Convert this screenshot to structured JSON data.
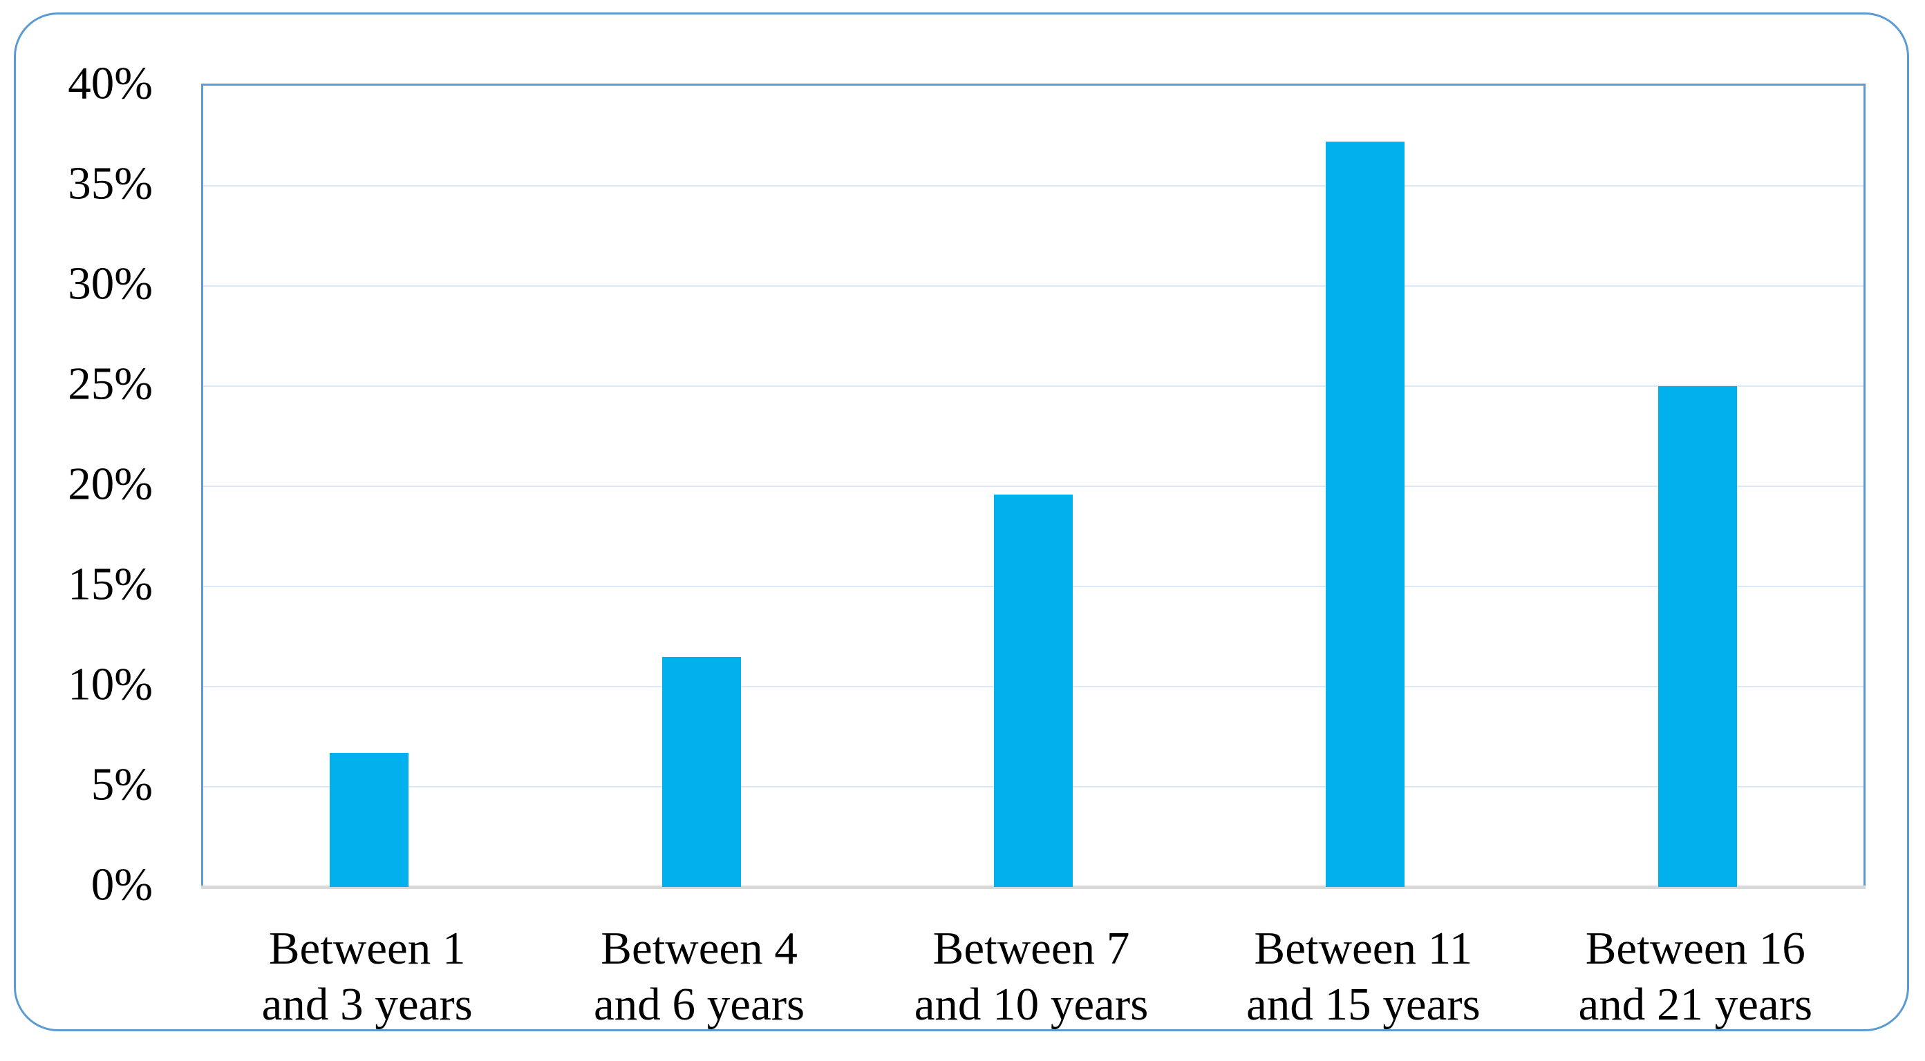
{
  "chart_data": {
    "type": "bar",
    "title": "",
    "xlabel": "",
    "ylabel": "",
    "categories": [
      "Between 1\nand 3 years",
      "Between 4\nand 6 years",
      "Between 7\nand 10 years",
      "Between 11\nand 15 years",
      "Between 16\nand 21 years"
    ],
    "values": [
      6.7,
      11.5,
      19.6,
      37.2,
      25.0
    ],
    "ylim": [
      0,
      40
    ],
    "ytick_step": 5,
    "ytick_labels": [
      "0%",
      "5%",
      "10%",
      "15%",
      "20%",
      "25%",
      "30%",
      "35%",
      "40%"
    ],
    "grid": true,
    "legend": false,
    "colors": {
      "bar": "#00b1ee",
      "gridline": "#dce8f5",
      "plot_border": "#5b9bd5",
      "frame_border": "#5b9bd5",
      "axis_line": "#d9d9d9",
      "label": "#000000"
    }
  }
}
